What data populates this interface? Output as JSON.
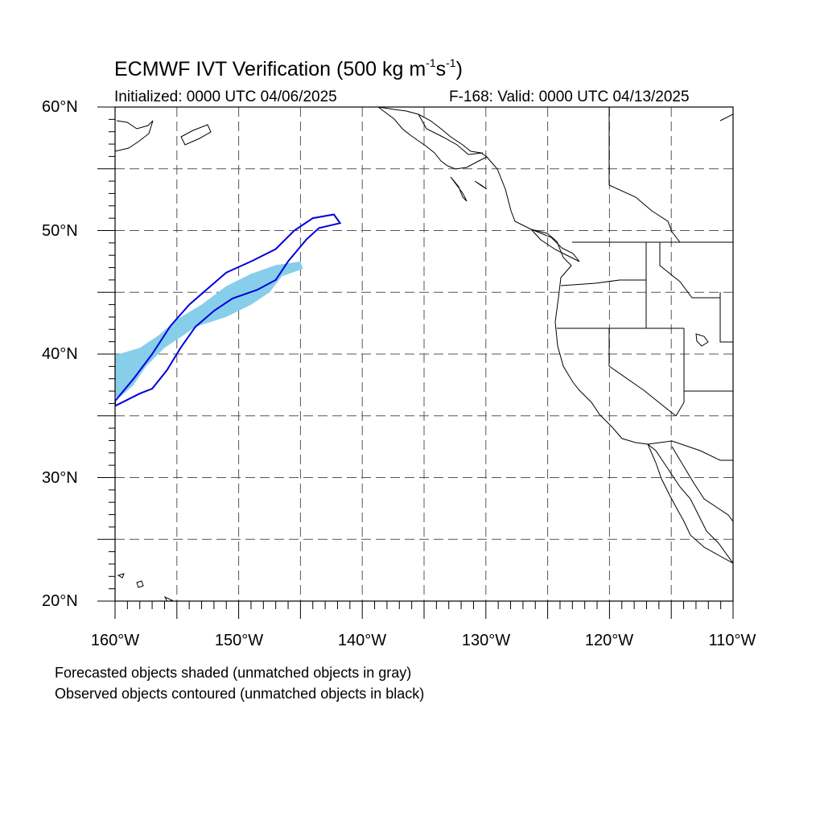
{
  "title": {
    "prefix": "ECMWF IVT Verification (500 kg m",
    "exp1": "-1",
    "mid": "s",
    "exp2": "-1",
    "suffix": ")"
  },
  "initialized": "Initialized: 0000 UTC 04/06/2025",
  "valid": "F-168: Valid: 0000 UTC 04/13/2025",
  "lat_labels": [
    "60°N",
    "50°N",
    "40°N",
    "30°N",
    "20°N"
  ],
  "lon_labels": [
    "160°W",
    "150°W",
    "140°W",
    "130°W",
    "120°W",
    "110°W"
  ],
  "notes": [
    "Forecasted objects shaded (unmatched objects in gray)",
    "Observed objects contoured (unmatched objects in black)"
  ],
  "colors": {
    "forecast_fill": "#87ceeb",
    "observed_contour": "#0000dd",
    "coastline": "#000000",
    "grid": "#555555"
  },
  "map": {
    "lon_range": [
      -160,
      -110
    ],
    "lat_range": [
      20,
      60
    ],
    "grid_lons": [
      -155,
      -150,
      -145,
      -140,
      -135,
      -130,
      -125,
      -120,
      -115
    ],
    "grid_lats": [
      25,
      30,
      35,
      40,
      45,
      50,
      55
    ]
  },
  "features": {
    "forecast_object": {
      "name": "forecasted IVT object (matched)",
      "outline": [
        [
          -160,
          39.9
        ],
        [
          -158,
          40.5
        ],
        [
          -156.5,
          41.5
        ],
        [
          -155,
          42.8
        ],
        [
          -153,
          44
        ],
        [
          -151,
          45.5
        ],
        [
          -149,
          46.5
        ],
        [
          -147,
          47.2
        ],
        [
          -145,
          47.5
        ],
        [
          -144.8,
          46.9
        ],
        [
          -146.5,
          46.3
        ],
        [
          -147.5,
          45
        ],
        [
          -149,
          44
        ],
        [
          -151,
          43
        ],
        [
          -153.5,
          42.2
        ],
        [
          -154.5,
          41.5
        ],
        [
          -156,
          40.5
        ],
        [
          -157.5,
          39
        ],
        [
          -158.5,
          37.5
        ],
        [
          -159.5,
          36.6
        ],
        [
          -160,
          36.5
        ]
      ]
    },
    "observed_object": {
      "name": "observed IVT object contour (matched)",
      "outline": [
        [
          -160,
          36.2
        ],
        [
          -158.5,
          38
        ],
        [
          -157,
          40
        ],
        [
          -155.5,
          42.3
        ],
        [
          -154,
          44
        ],
        [
          -152.5,
          45.3
        ],
        [
          -151,
          46.6
        ],
        [
          -149,
          47.5
        ],
        [
          -147,
          48.5
        ],
        [
          -145.5,
          50
        ],
        [
          -144,
          51
        ],
        [
          -142.3,
          51.3
        ],
        [
          -141.8,
          50.6
        ],
        [
          -143.5,
          50.2
        ],
        [
          -144.5,
          49.3
        ],
        [
          -146,
          47.5
        ],
        [
          -147,
          46
        ],
        [
          -148.5,
          45.2
        ],
        [
          -150.5,
          44.5
        ],
        [
          -152,
          43.5
        ],
        [
          -153.5,
          42.2
        ],
        [
          -154.7,
          40.5
        ],
        [
          -155.8,
          38.7
        ],
        [
          -157,
          37.2
        ],
        [
          -158,
          36.8
        ],
        [
          -159.2,
          36.2
        ],
        [
          -160,
          35.8
        ]
      ]
    }
  }
}
